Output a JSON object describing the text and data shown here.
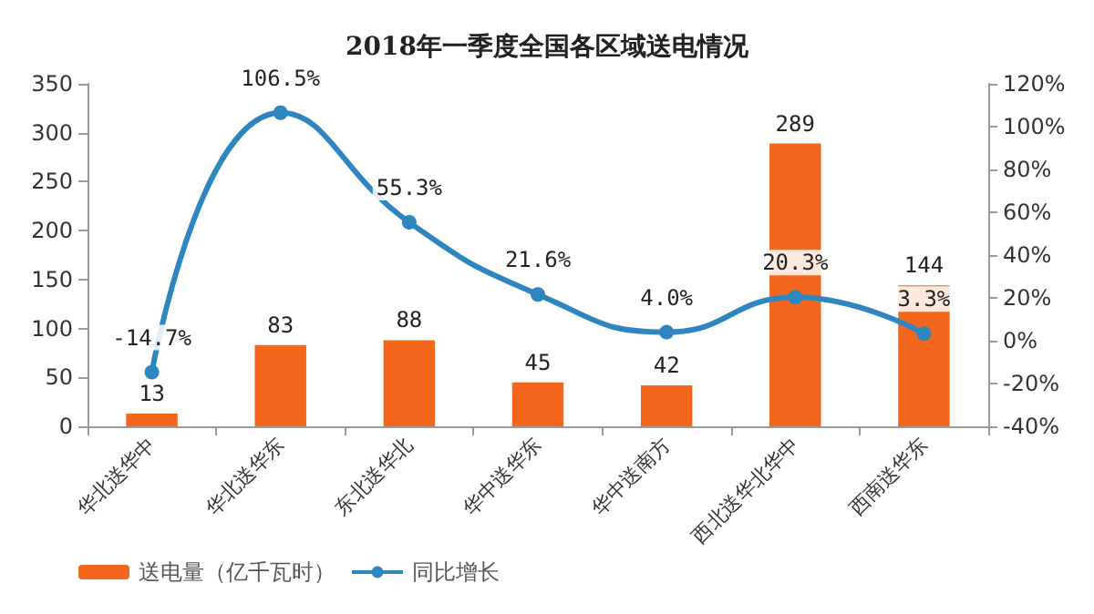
{
  "chart_data": {
    "type": "bar",
    "title": "2018年一季度全国各区域送电情况",
    "categories": [
      "华北送华中",
      "华北送华东",
      "东北送华北",
      "华中送华东",
      "华中送南方",
      "西北送华北华中",
      "西南送华东"
    ],
    "series": [
      {
        "name": "送电量（亿千瓦时）",
        "color": "#f4661b",
        "values": [
          13,
          83,
          88,
          45,
          42,
          289,
          144
        ],
        "value_labels": [
          "13",
          "83",
          "88",
          "45",
          "42",
          "289",
          "144"
        ]
      },
      {
        "name": "同比增长",
        "type": "line",
        "axis": "y2",
        "color": "#2e86c1",
        "values": [
          -14.7,
          106.5,
          55.3,
          21.6,
          4.0,
          20.3,
          3.3
        ],
        "value_labels": [
          "-14.7%",
          "106.5%",
          "55.3%",
          "21.6%",
          "4.0%",
          "20.3%",
          "3.3%"
        ]
      }
    ],
    "ylim": [
      0,
      350
    ],
    "yticks": [
      0,
      50,
      100,
      150,
      200,
      250,
      300,
      350
    ],
    "y2lim": [
      -40,
      120
    ],
    "y2ticks": [
      {
        "value": -40,
        "label": "-40%"
      },
      {
        "value": -20,
        "label": "-20%"
      },
      {
        "value": 0,
        "label": "0%"
      },
      {
        "value": 20,
        "label": "20%"
      },
      {
        "value": 40,
        "label": "40%"
      },
      {
        "value": 60,
        "label": "60%"
      },
      {
        "value": 80,
        "label": "80%"
      },
      {
        "value": 100,
        "label": "100%"
      },
      {
        "value": 120,
        "label": "120%"
      }
    ],
    "legend": "bottom",
    "marker": "circle",
    "grid": false
  }
}
